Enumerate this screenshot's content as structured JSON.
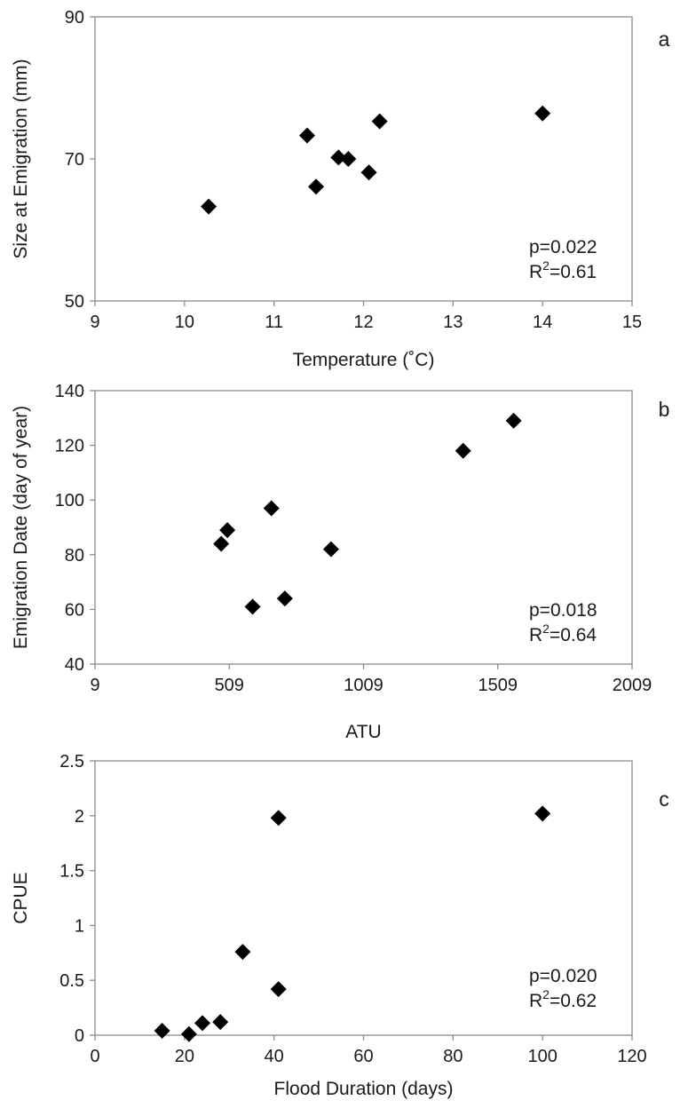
{
  "chart_data": [
    {
      "type": "scatter",
      "panel_letter": "a",
      "xlabel": "Temperature (˚C)",
      "ylabel": "Size at Emigration (mm)",
      "xlim": [
        9,
        15
      ],
      "ylim": [
        50,
        90
      ],
      "xticks": [
        "9",
        "10",
        "11",
        "12",
        "13",
        "14",
        "15"
      ],
      "yticks": [
        "50",
        "70",
        "90"
      ],
      "grid": false,
      "marker": "diamond",
      "points": [
        {
          "x": 10.27,
          "y": 63.3
        },
        {
          "x": 11.37,
          "y": 73.3
        },
        {
          "x": 11.47,
          "y": 66.1
        },
        {
          "x": 11.72,
          "y": 70.2
        },
        {
          "x": 11.83,
          "y": 70.0
        },
        {
          "x": 12.06,
          "y": 68.1
        },
        {
          "x": 12.18,
          "y": 75.3
        },
        {
          "x": 14.0,
          "y": 76.4
        }
      ],
      "annotations": {
        "p": "p=0.022",
        "r2_prefix": "R",
        "r2_sup": "2",
        "r2_value": "=0.61"
      }
    },
    {
      "type": "scatter",
      "panel_letter": "b",
      "xlabel": "ATU",
      "ylabel": "Emigration Date (day of year)",
      "xlim": [
        9,
        2009
      ],
      "ylim": [
        40,
        140
      ],
      "xticks": [
        "9",
        "509",
        "1009",
        "1509",
        "2009"
      ],
      "yticks": [
        "40",
        "60",
        "80",
        "100",
        "120",
        "140"
      ],
      "grid": false,
      "marker": "diamond",
      "points": [
        {
          "x": 479,
          "y": 84
        },
        {
          "x": 502,
          "y": 89
        },
        {
          "x": 596,
          "y": 61
        },
        {
          "x": 666,
          "y": 97
        },
        {
          "x": 716,
          "y": 64
        },
        {
          "x": 888,
          "y": 82
        },
        {
          "x": 1380,
          "y": 118
        },
        {
          "x": 1568,
          "y": 129
        }
      ],
      "annotations": {
        "p": "p=0.018",
        "r2_prefix": "R",
        "r2_sup": "2",
        "r2_value": "=0.64"
      }
    },
    {
      "type": "scatter",
      "panel_letter": "c",
      "xlabel": "Flood Duration (days)",
      "ylabel": "CPUE",
      "xlim": [
        0,
        120
      ],
      "ylim": [
        0,
        2.5
      ],
      "xticks": [
        "0",
        "20",
        "40",
        "60",
        "80",
        "100",
        "120"
      ],
      "yticks": [
        "0",
        "0.5",
        "1",
        "1.5",
        "2",
        "2.5"
      ],
      "grid": false,
      "marker": "diamond",
      "points": [
        {
          "x": 15,
          "y": 0.04
        },
        {
          "x": 21,
          "y": 0.01
        },
        {
          "x": 24,
          "y": 0.11
        },
        {
          "x": 28,
          "y": 0.12
        },
        {
          "x": 33,
          "y": 0.76
        },
        {
          "x": 41,
          "y": 0.42
        },
        {
          "x": 41,
          "y": 1.98
        },
        {
          "x": 100,
          "y": 2.02
        }
      ],
      "annotations": {
        "p": "p=0.020",
        "r2_prefix": "R",
        "r2_sup": "2",
        "r2_value": "=0.62"
      }
    }
  ]
}
